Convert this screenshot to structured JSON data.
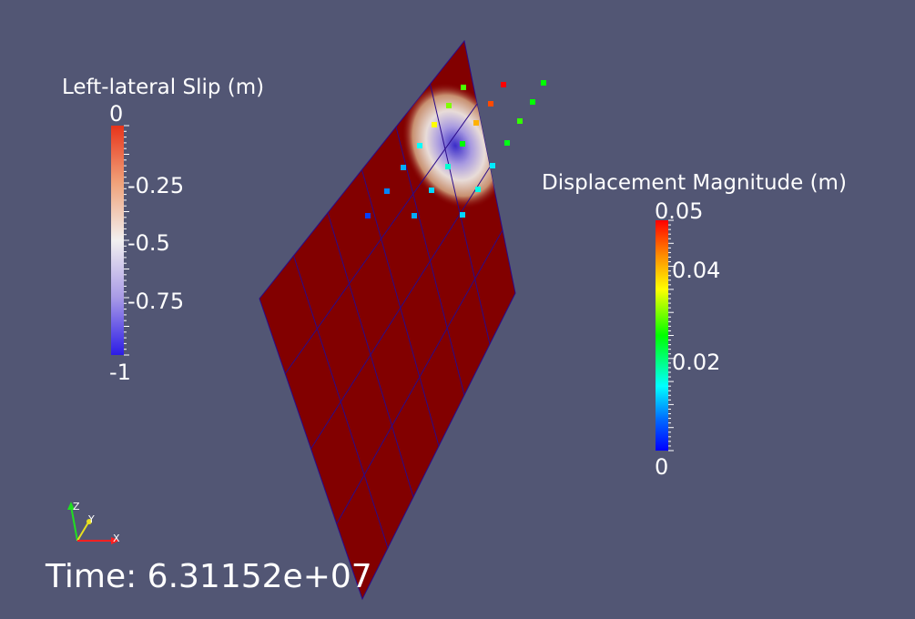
{
  "slip_legend": {
    "title": "Left-lateral Slip (m)",
    "ticks": [
      {
        "value": 0,
        "label": "0"
      },
      {
        "value": -0.25,
        "label": "-0.25"
      },
      {
        "value": -0.5,
        "label": "-0.5"
      },
      {
        "value": -0.75,
        "label": "-0.75"
      },
      {
        "value": -1,
        "label": "-1"
      }
    ],
    "colors": {
      "top": "#e8341a",
      "upper": "#f0a27a",
      "middle": "#f2f0f0",
      "lower": "#a89ae6",
      "bottom": "#2c1ce6"
    }
  },
  "displacement_legend": {
    "title": "Displacement Magnitude (m)",
    "ticks": [
      {
        "value": 0.05,
        "label": "0.05"
      },
      {
        "value": 0.04,
        "label": "0.04"
      },
      {
        "value": 0.02,
        "label": "0.02"
      },
      {
        "value": 0,
        "label": "0"
      }
    ],
    "colors": [
      "#ff0000",
      "#ff8a00",
      "#ffff00",
      "#00ff00",
      "#00ffff",
      "#0066ff",
      "#0000ff"
    ]
  },
  "fault_surface": {
    "color": "#820000",
    "grid_color": "#2a0a8a"
  },
  "displacement_points": [
    {
      "magnitude": 0.05
    },
    {
      "magnitude": 0.025
    },
    {
      "magnitude": 0.028
    },
    {
      "magnitude": 0.025
    },
    {
      "magnitude": 0.03
    },
    {
      "magnitude": 0.046
    },
    {
      "magnitude": 0.027
    },
    {
      "magnitude": 0.035
    },
    {
      "magnitude": 0.04
    },
    {
      "magnitude": 0.025
    },
    {
      "magnitude": 0.014
    },
    {
      "magnitude": 0.024
    },
    {
      "magnitude": 0.01
    },
    {
      "magnitude": 0.016
    },
    {
      "magnitude": 0.013
    },
    {
      "magnitude": 0.008
    },
    {
      "magnitude": 0.012
    },
    {
      "magnitude": 0.015
    },
    {
      "magnitude": 0.004
    },
    {
      "magnitude": 0.01
    },
    {
      "magnitude": 0.012
    },
    {
      "magnitude": 0.012
    }
  ],
  "axes_triad": {
    "x_label": "X",
    "y_label": "Y",
    "z_label": "Z",
    "x_color": "#ff2020",
    "y_color": "#e8e020",
    "z_color": "#20e020"
  },
  "time_annotation": "Time: 6.31152e+07"
}
